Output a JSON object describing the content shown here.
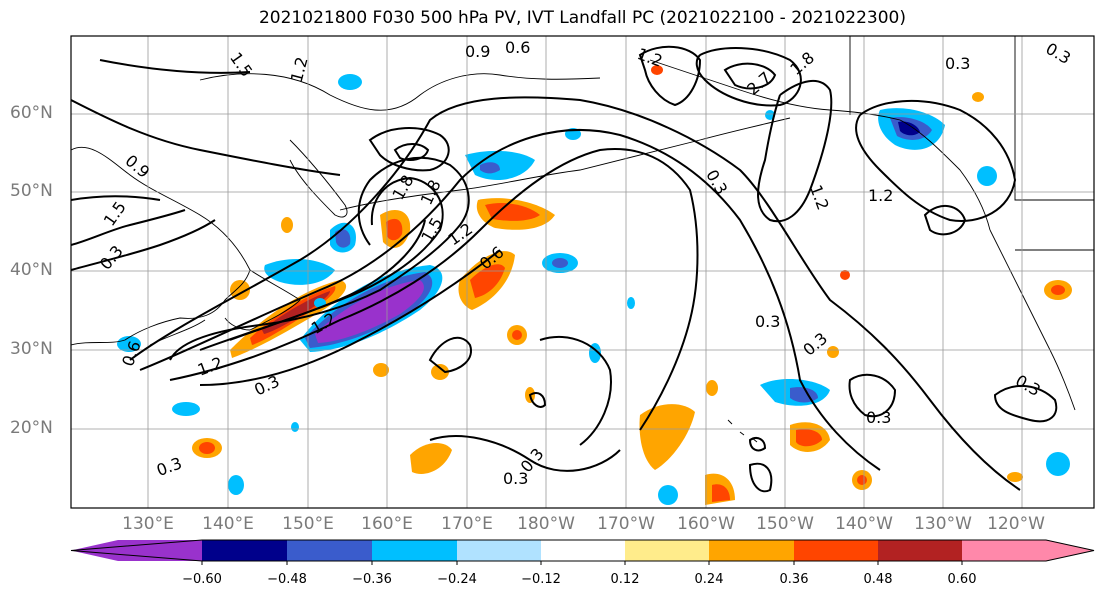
{
  "title": "2021021800 F030 500 hPa PV, IVT Landfall PC (2021022100 - 2021022300)",
  "lat_labels": [
    "60°N",
    "50°N",
    "40°N",
    "30°N",
    "20°N"
  ],
  "lon_labels": [
    "130°E",
    "140°E",
    "150°E",
    "160°E",
    "170°E",
    "180°W",
    "170°W",
    "160°W",
    "150°W",
    "140°W",
    "130°W",
    "120°W"
  ],
  "colorbar": {
    "ticks": [
      "−0.60",
      "−0.48",
      "−0.36",
      "−0.24",
      "−0.12",
      "0.12",
      "0.24",
      "0.36",
      "0.48",
      "0.60"
    ],
    "colors": [
      "#9932cc",
      "#00008b",
      "#3a5ccc",
      "#00bfff",
      "#b0e2ff",
      "#ffffff",
      "#ffec8b",
      "#ffa500",
      "#ff4500",
      "#b22222",
      "#ff88aa"
    ]
  },
  "contour_labels": [
    "1.5",
    "1.2",
    "0.9",
    "0.6",
    "0.3",
    "1.2",
    "2.7",
    "1.8",
    "0.3",
    "0.3",
    "0.9",
    "1.5",
    "0.3",
    "1.2",
    "1.8",
    "1.5",
    "1.2",
    "0.6",
    "0.3",
    "1.2",
    "1.2",
    "0.3",
    "0.3",
    "0.3",
    "0.3",
    "0.3",
    "0.3",
    "0.3",
    "0.6",
    "1.8",
    "1.2"
  ]
}
